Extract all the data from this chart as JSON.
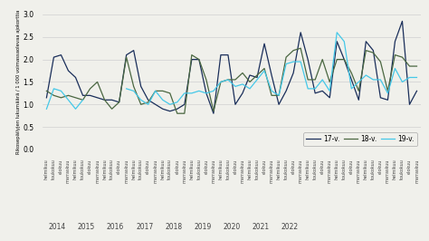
{
  "title": "",
  "ylabel": "Rikosepäilyjen lukumäärä / 1 000 voimassaolevaa ajokorttia",
  "ylim": [
    0.0,
    3.0
  ],
  "yticks": [
    0.0,
    0.5,
    1.0,
    1.5,
    2.0,
    2.5,
    3.0
  ],
  "colors": {
    "17-v.": "#1a2e5a",
    "18-v.": "#4a6741",
    "19-v.": "#45c8e8"
  },
  "legend_labels": [
    "17-v.",
    "18-v.",
    "19-v."
  ],
  "background_color": "#f0f0eb",
  "grid_color": "#d0d0d0",
  "series": {
    "17-v.": [
      1.15,
      2.05,
      2.1,
      1.75,
      1.6,
      1.2,
      1.2,
      1.15,
      1.1,
      1.1,
      1.05,
      2.1,
      2.2,
      1.4,
      1.1,
      1.0,
      0.9,
      0.85,
      0.9,
      1.0,
      2.0,
      2.0,
      1.25,
      0.8,
      2.1,
      2.1,
      1.0,
      1.25,
      1.65,
      1.6,
      2.35,
      1.65,
      1.0,
      1.3,
      1.7,
      2.6,
      2.0,
      1.25,
      1.3,
      1.15,
      2.4,
      2.0,
      1.55,
      1.1,
      2.4,
      2.2,
      1.15,
      1.1,
      2.4,
      2.85,
      1.0,
      1.3
    ],
    "18-v.": [
      1.3,
      1.2,
      1.15,
      1.2,
      1.15,
      1.1,
      1.35,
      1.5,
      1.1,
      0.9,
      1.05,
      2.05,
      1.4,
      1.0,
      1.05,
      1.3,
      1.3,
      1.25,
      0.8,
      0.8,
      2.1,
      2.0,
      1.55,
      0.85,
      1.5,
      1.55,
      1.55,
      1.7,
      1.5,
      1.65,
      1.8,
      1.2,
      1.2,
      2.05,
      2.2,
      2.25,
      1.55,
      1.55,
      2.0,
      1.5,
      2.0,
      2.0,
      1.7,
      1.3,
      2.2,
      2.15,
      1.95,
      1.3,
      2.1,
      2.05,
      1.85,
      1.85
    ],
    "19-v.": [
      0.9,
      1.35,
      1.3,
      1.1,
      0.9,
      1.1,
      null,
      null,
      null,
      null,
      null,
      1.35,
      1.3,
      1.1,
      1.0,
      1.3,
      1.1,
      1.0,
      1.05,
      1.25,
      1.25,
      1.3,
      1.25,
      1.3,
      1.5,
      1.55,
      1.4,
      1.45,
      1.35,
      1.55,
      1.75,
      1.3,
      1.2,
      1.9,
      1.95,
      1.95,
      1.35,
      1.35,
      1.55,
      1.3,
      2.6,
      2.4,
      1.35,
      1.5,
      1.65,
      1.55,
      1.55,
      1.25,
      1.8,
      1.5,
      1.6,
      1.6
    ]
  },
  "x_tick_labels": [
    "helmikuu",
    "toukokuu",
    "elokuu",
    "marraskuu",
    "helmikuu",
    "toukokuu",
    "elokuu",
    "marraskuu",
    "helmikuu",
    "toukokuu",
    "elokuu",
    "marraskuu",
    "helmikuu",
    "toukokuu",
    "elokuu",
    "marraskuu",
    "helmikuu",
    "toukokuu",
    "elokuu",
    "marraskuu",
    "helmikuu",
    "toukokuu",
    "elokuu",
    "marraskuu",
    "helmikuu",
    "toukokuu",
    "elokuu",
    "marraskuu",
    "helmikuu",
    "toukokuu",
    "elokuu",
    "marraskuu",
    "helmikuu",
    "toukokuu",
    "elokuu",
    "marraskuu",
    "helmikuu",
    "toukokuu",
    "elokuu",
    "marraskuu",
    "helmikuu",
    "toukokuu",
    "elokuu",
    "marraskuu",
    "helmikuu",
    "toukokuu",
    "elokuu",
    "marraskuu",
    "helmikuu",
    "toukokuu",
    "elokuu",
    "marraskuu"
  ],
  "year_labels": [
    {
      "text": "2014",
      "x": 1.5
    },
    {
      "text": "2015",
      "x": 5.5
    },
    {
      "text": "2016",
      "x": 9.5
    },
    {
      "text": "2017",
      "x": 13.5
    },
    {
      "text": "2018",
      "x": 17.5
    },
    {
      "text": "2019",
      "x": 21.5
    },
    {
      "text": "2020",
      "x": 25.5
    },
    {
      "text": "2021",
      "x": 29.5
    },
    {
      "text": "2022",
      "x": 33.5
    }
  ],
  "n_points": 52
}
